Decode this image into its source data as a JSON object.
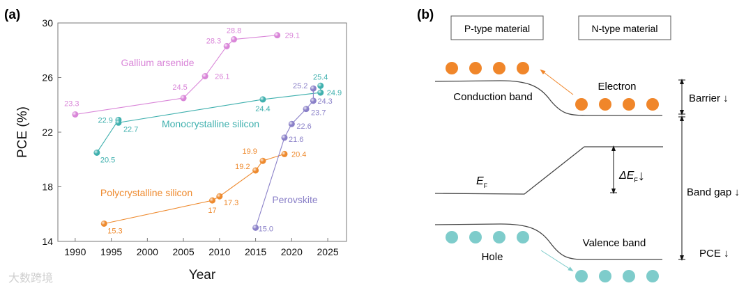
{
  "panel_a_label": "(a)",
  "panel_b_label": "(b)",
  "watermark": "大数跨境",
  "chart_data": {
    "type": "line",
    "title": "",
    "xlabel": "Year",
    "ylabel": "PCE (%)",
    "xlim": [
      1987.6,
      2027.6
    ],
    "ylim": [
      14,
      30
    ],
    "xticks": [
      1990,
      1995,
      2000,
      2005,
      2010,
      2015,
      2020,
      2025
    ],
    "yticks": [
      14,
      18,
      22,
      26,
      30
    ],
    "grid": false,
    "series": [
      {
        "name": "Gallium arsenide",
        "color": "#d985d8",
        "x": [
          1990,
          2005,
          2008,
          2011,
          2012,
          2018
        ],
        "y": [
          23.3,
          24.5,
          26.1,
          28.3,
          28.8,
          29.1
        ],
        "labels": [
          "23.3",
          "24.5",
          "26.1",
          "28.3",
          "28.8",
          "29.1"
        ]
      },
      {
        "name": "Monocrystalline silicon",
        "color": "#3fb0ae",
        "x": [
          1993,
          1996,
          1996,
          2016,
          2024,
          2024
        ],
        "y": [
          20.5,
          22.9,
          22.7,
          24.4,
          24.9,
          25.4
        ],
        "labels": [
          "20.5",
          "22.9",
          "22.7",
          "24.4",
          "24.9",
          "25.4"
        ]
      },
      {
        "name": "Polycrystalline silicon",
        "color": "#ee8a2e",
        "x": [
          1994,
          2009,
          2010,
          2015,
          2016,
          2019
        ],
        "y": [
          15.3,
          17.0,
          17.3,
          19.2,
          19.9,
          20.4
        ],
        "labels": [
          "15.3",
          "17",
          "17.3",
          "19.2",
          "19.9",
          "20.4"
        ]
      },
      {
        "name": "Perovskite",
        "color": "#8a80c8",
        "x": [
          2015,
          2019,
          2020,
          2022,
          2023,
          2023
        ],
        "y": [
          15.0,
          21.6,
          22.6,
          23.7,
          24.3,
          25.2
        ],
        "labels": [
          "15.0",
          "21.6",
          "22.6",
          "23.7",
          "24.3",
          "25.2"
        ]
      }
    ]
  },
  "diagram": {
    "p_type": "P-type material",
    "n_type": "N-type material",
    "conduction_band": "Conduction band",
    "valence_band": "Valence band",
    "electron": "Electron",
    "hole": "Hole",
    "fermi": "E",
    "fermi_sub": "F",
    "delta_fermi": "ΔE",
    "delta_fermi_sub": "F",
    "delta_fermi_arrow": "↓",
    "barrier": "Barrier ↓",
    "band_gap": "Band gap ↓",
    "pce": "PCE ↓",
    "electron_color": "#f0862a",
    "hole_color": "#7ecccb"
  }
}
